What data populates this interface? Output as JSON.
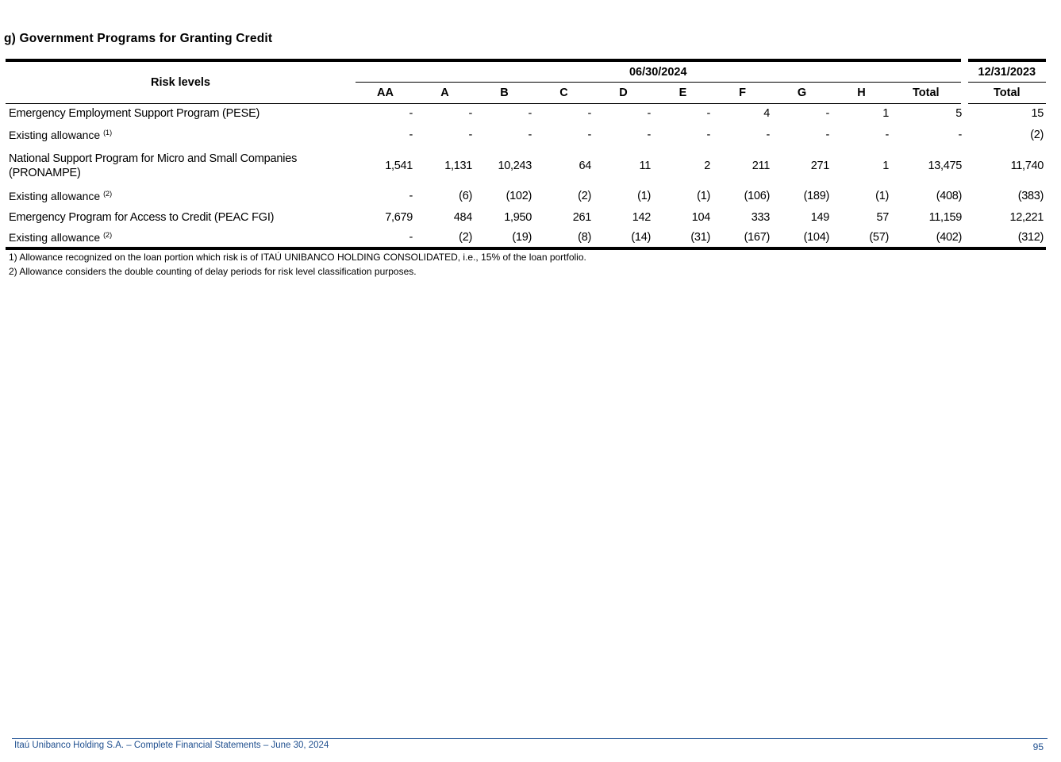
{
  "title": "g) Government Programs for Granting Credit",
  "table": {
    "row_header": "Risk levels",
    "period_current": "06/30/2024",
    "period_prior": "12/31/2023",
    "columns": [
      "AA",
      "A",
      "B",
      "C",
      "D",
      "E",
      "F",
      "G",
      "H",
      "Total",
      "Total"
    ],
    "rows": [
      {
        "label": "Emergency Employment Support Program (PESE)",
        "sup": "",
        "values": [
          "-",
          "-",
          "-",
          "-",
          "-",
          "-",
          "4",
          "-",
          "1",
          "5",
          "15"
        ]
      },
      {
        "label": "Existing allowance",
        "sup": "(1)",
        "values": [
          "-",
          "-",
          "-",
          "-",
          "-",
          "-",
          "-",
          "-",
          "-",
          "-",
          "(2)"
        ]
      },
      {
        "label": "National Support Program for Micro and Small Companies (PRONAMPE)",
        "sup": "",
        "values": [
          "1,541",
          "1,131",
          "10,243",
          "64",
          "11",
          "2",
          "211",
          "271",
          "1",
          "13,475",
          "11,740"
        ]
      },
      {
        "label": "Existing allowance",
        "sup": "(2)",
        "values": [
          "-",
          "(6)",
          "(102)",
          "(2)",
          "(1)",
          "(1)",
          "(106)",
          "(189)",
          "(1)",
          "(408)",
          "(383)"
        ]
      },
      {
        "label": "Emergency Program for Access to Credit (PEAC FGI)",
        "sup": "",
        "values": [
          "7,679",
          "484",
          "1,950",
          "261",
          "142",
          "104",
          "333",
          "149",
          "57",
          "11,159",
          "12,221"
        ]
      },
      {
        "label": "Existing allowance",
        "sup": "(2)",
        "values": [
          "-",
          "(2)",
          "(19)",
          "(8)",
          "(14)",
          "(31)",
          "(167)",
          "(104)",
          "(57)",
          "(402)",
          "(312)"
        ]
      }
    ]
  },
  "footnotes": [
    "1) Allowance recognized on the loan portion which risk is of ITAÚ UNIBANCO HOLDING CONSOLIDATED, i.e., 15% of the loan portfolio.",
    "2) Allowance considers the double counting of delay periods for risk level classification purposes."
  ],
  "footer": {
    "text": "Itaú Unibanco Holding S.A. – Complete Financial Statements – June 30, 2024",
    "page": "95",
    "color": "#1f4f8f"
  }
}
